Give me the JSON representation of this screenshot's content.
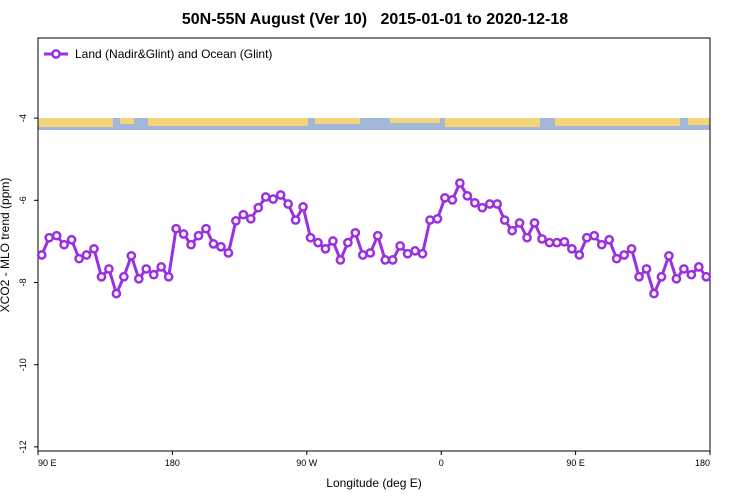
{
  "chart_data": {
    "type": "line",
    "title": "50N-55N August (Ver 10)   2015-01-01 to 2020-12-18",
    "x_label": "Longitude (deg E)",
    "y_label": "XCO2 - MLO trend (ppm)",
    "legend_position": "upper left",
    "xlim": [
      90,
      540
    ],
    "xticks": [
      {
        "value": 90,
        "label": "90 E"
      },
      180,
      {
        "value": 270,
        "label": "90 W"
      },
      {
        "value": 360,
        "label": "0"
      },
      {
        "value": 450,
        "label": "90 E"
      },
      {
        "value": 540,
        "label": "180"
      }
    ],
    "ylim": [
      -12.1,
      -2.05
    ],
    "yticks": [
      -4,
      -6,
      -8,
      -10,
      -12
    ],
    "x": [
      92.5,
      97.5,
      102.5,
      107.5,
      112.5,
      117.5,
      122.5,
      127.5,
      132.5,
      137.5,
      142.5,
      147.5,
      152.5,
      157.5,
      162.5,
      167.5,
      172.5,
      177.5,
      182.5,
      187.5,
      192.5,
      197.5,
      202.5,
      207.5,
      212.5,
      217.5,
      222.5,
      227.5,
      232.5,
      237.5,
      242.5,
      247.5,
      252.5,
      257.5,
      262.5,
      267.5,
      272.5,
      277.5,
      282.5,
      287.5,
      292.5,
      297.5,
      302.5,
      307.5,
      312.5,
      317.5,
      322.5,
      327.5,
      332.5,
      337.5,
      342.5,
      347.5,
      352.5,
      357.5,
      362.5,
      367.5,
      372.5,
      377.5,
      382.5,
      387.5,
      392.5,
      397.5,
      402.5,
      407.5,
      412.5,
      417.5,
      422.5,
      427.5,
      432.5,
      437.5,
      442.5,
      447.5,
      452.5,
      457.5,
      462.5,
      467.5,
      472.5,
      477.5,
      482.5,
      487.5,
      492.5,
      497.5,
      502.5,
      507.5,
      512.5,
      517.5,
      522.5,
      527.5,
      532.5,
      537.5
    ],
    "series": [
      {
        "name": "Land (Nadir&Glint) and Ocean (Glint)",
        "color": "#9b30e0",
        "values": [
          -7.33,
          -6.91,
          -6.86,
          -7.08,
          -6.96,
          -7.42,
          -7.33,
          -7.18,
          -7.86,
          -7.67,
          -8.27,
          -7.86,
          -7.35,
          -7.91,
          -7.67,
          -7.81,
          -7.62,
          -7.86,
          -6.69,
          -6.82,
          -7.08,
          -6.86,
          -6.69,
          -7.06,
          -7.13,
          -7.28,
          -6.5,
          -6.35,
          -6.45,
          -6.18,
          -5.92,
          -5.97,
          -5.87,
          -6.09,
          -6.48,
          -6.16,
          -6.91,
          -7.03,
          -7.18,
          -6.99,
          -7.45,
          -7.03,
          -6.79,
          -7.33,
          -7.28,
          -6.86,
          -7.45,
          -7.45,
          -7.11,
          -7.3,
          -7.23,
          -7.3,
          -6.48,
          -6.45,
          -5.94,
          -5.99,
          -5.58,
          -5.89,
          -6.06,
          -6.18,
          -6.09,
          -6.09,
          -6.48,
          -6.74,
          -6.55,
          -6.91,
          -6.55,
          -6.94,
          -7.03,
          -7.03,
          -7.01,
          -7.18,
          -7.33,
          -6.91,
          -6.86,
          -7.08,
          -6.96,
          -7.42,
          -7.33,
          -7.18,
          -7.86,
          -7.67,
          -8.27,
          -7.86,
          -7.35,
          -7.91,
          -7.67,
          -7.81,
          -7.62,
          -7.86
        ]
      }
    ]
  }
}
